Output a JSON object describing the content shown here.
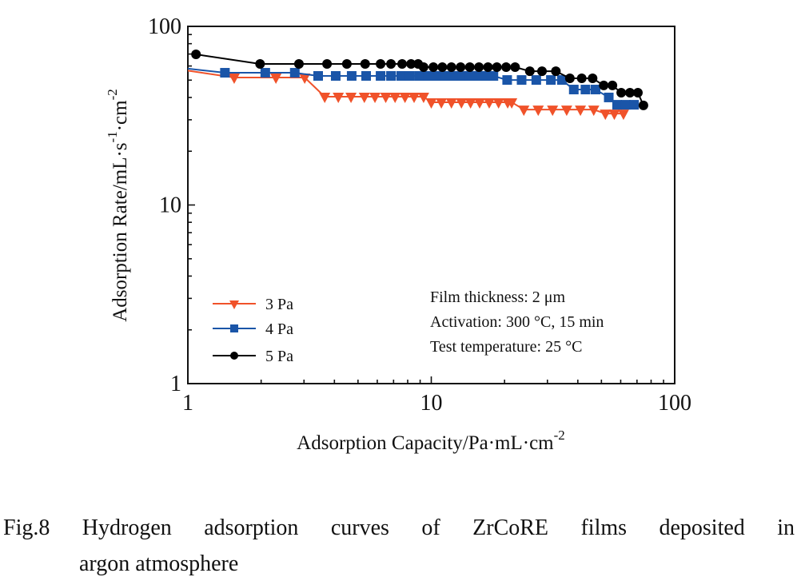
{
  "chart_data": {
    "type": "line",
    "title": "",
    "xlabel": "Adsorption Capacity/Pa·mL·cm",
    "xlabel_sup": "-2",
    "ylabel": "Adsorption Rate/mL·s",
    "ylabel_sup1": "-1",
    "ylabel_mid": "·cm",
    "ylabel_sup2": "-2",
    "xscale": "log",
    "yscale": "log",
    "xlim": [
      1,
      100
    ],
    "ylim": [
      1,
      100
    ],
    "xticks": [
      1,
      10,
      100
    ],
    "xtick_labels": [
      "1",
      "10",
      "100"
    ],
    "yticks": [
      1,
      10,
      100
    ],
    "ytick_labels": [
      "1",
      "10",
      "100"
    ],
    "grid": false,
    "legend_position": "bottom-left",
    "series": [
      {
        "name": "3 Pa",
        "color": "#f0522a",
        "marker": "triangle-down",
        "x": [
          1.0,
          1.55,
          2.3,
          3.02,
          3.65,
          4.15,
          4.68,
          5.31,
          5.87,
          6.5,
          7.1,
          7.8,
          8.5,
          9.3,
          10.0,
          11.0,
          12.1,
          13.3,
          14.5,
          15.8,
          17.3,
          18.9,
          20.6,
          21.4,
          24.0,
          27.5,
          31.5,
          36.0,
          41.0,
          46.5,
          51.9,
          56.5,
          61.6
        ],
        "y": [
          56.5,
          51.7,
          51.7,
          51.7,
          40.4,
          40.4,
          40.4,
          40.4,
          40.4,
          40.4,
          40.4,
          40.4,
          40.4,
          40.4,
          37.6,
          37.6,
          37.6,
          37.6,
          37.6,
          37.6,
          37.6,
          37.6,
          37.6,
          37.6,
          34.2,
          34.2,
          34.2,
          34.2,
          34.2,
          34.2,
          32.5,
          32.5,
          32.5
        ]
      },
      {
        "name": "4 Pa",
        "color": "#1a55a8",
        "marker": "square",
        "x": [
          1.0,
          1.42,
          2.08,
          2.75,
          3.43,
          4.05,
          4.71,
          5.4,
          6.19,
          6.83,
          7.52,
          8.18,
          8.95,
          9.7,
          10.5,
          11.4,
          12.3,
          13.3,
          14.4,
          15.6,
          16.8,
          18.0,
          20.5,
          23.5,
          27.0,
          31.0,
          34.4,
          38.5,
          43.0,
          47.3,
          53.6,
          58.0,
          63.0,
          68.1
        ],
        "y": [
          58.0,
          55.0,
          55.0,
          55.0,
          52.8,
          52.8,
          52.8,
          52.8,
          52.8,
          52.8,
          52.8,
          52.8,
          52.8,
          52.8,
          52.8,
          52.8,
          52.8,
          52.8,
          52.8,
          52.8,
          52.8,
          52.8,
          50.1,
          50.1,
          50.1,
          50.1,
          50.1,
          44.3,
          44.3,
          44.3,
          40.0,
          36.4,
          36.4,
          36.4
        ]
      },
      {
        "name": "5 Pa",
        "color": "#000000",
        "marker": "circle",
        "x": [
          1.08,
          1.98,
          2.86,
          3.73,
          4.5,
          5.35,
          6.19,
          6.83,
          7.59,
          8.26,
          8.83,
          9.3,
          10.2,
          11.1,
          12.1,
          13.2,
          14.4,
          15.7,
          17.1,
          18.6,
          20.3,
          22.1,
          25.4,
          28.5,
          32.5,
          37.1,
          41.5,
          46.0,
          51.1,
          55.5,
          60.3,
          65.5,
          70.6,
          74.4
        ],
        "y": [
          69.7,
          61.6,
          61.6,
          61.6,
          61.6,
          61.6,
          61.6,
          61.6,
          61.6,
          61.6,
          61.6,
          59.1,
          59.1,
          59.1,
          59.1,
          59.1,
          59.1,
          59.1,
          59.1,
          59.1,
          59.1,
          59.1,
          56.1,
          56.1,
          56.1,
          51.2,
          51.2,
          51.2,
          46.7,
          46.7,
          42.5,
          42.5,
          42.5,
          36.1
        ]
      }
    ],
    "annotations": [
      "Film thickness: 2 μm",
      "Activation: 300 °C, 15 min",
      "Test temperature: 25 °C"
    ]
  },
  "caption": {
    "line1": "Fig.8 Hydrogen adsorption curves of ZrCoRE films deposited in",
    "line2": "argon atmosphere"
  }
}
